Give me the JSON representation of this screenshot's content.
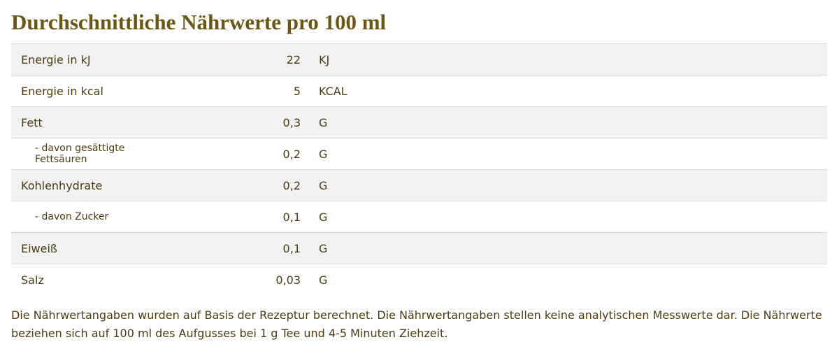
{
  "title": "Durchschnittliche Nährwerte pro 100 ml",
  "table": {
    "rows": [
      [
        "Energie in kJ",
        "22",
        "KJ"
      ],
      [
        "Energie in kcal",
        "5",
        "KCAL"
      ],
      [
        "Fett",
        "0,3",
        "G"
      ],
      [
        "- davon gesättigte Fettsäuren",
        "0,2",
        "G"
      ],
      [
        "Kohlenhydrate",
        "0,2",
        "G"
      ],
      [
        "- davon Zucker",
        "0,1",
        "G"
      ],
      [
        "Eiweiß",
        "0,1",
        "G"
      ],
      [
        "Salz",
        "0,03",
        "G"
      ]
    ]
  },
  "note": "Die Nährwertangaben wurden auf Basis der Rezeptur berechnet. Die Nährwertangaben stellen keine analytischen Messwerte dar. Die Nährwerte beziehen sich auf 100 ml des Aufgusses bei 1 g Tee und 4-5 Minuten Ziehzeit."
}
